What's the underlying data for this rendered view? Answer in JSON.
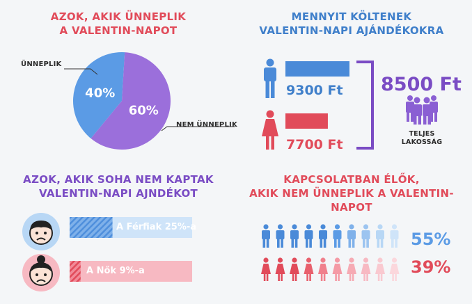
{
  "colors": {
    "red": "#e14b5a",
    "blue": "#3f7fca",
    "purple": "#7a4cc4",
    "light_blue": "#5b9be5",
    "pink": "#f06a7e",
    "pale_blue": "#b8d7f5",
    "pale_pink": "#f7b9c2"
  },
  "panels": {
    "celebrate": {
      "title_line1": "AZOK, AKIK ÜNNEPLIK",
      "title_line2": "A VALENTIN-NAPOT",
      "label_yes": "ÜNNEPLIK",
      "label_no": "NEM ÜNNEPLIK"
    },
    "spending": {
      "title_line1": "MENNYIT KÖLTENEK",
      "title_line2": "VALENTIN-NAPI AJÁNDÉKOKRA",
      "men_amount": "9300 Ft",
      "women_amount": "7700 Ft",
      "total_amount": "8500 Ft",
      "total_label_line1": "TELJES",
      "total_label_line2": "LAKOSSÁG",
      "icons": [
        "man-icon",
        "woman-icon",
        "group-icon"
      ]
    },
    "never_received": {
      "title_line1": "AZOK, AKIK SOHA NEM KAPTAK",
      "title_line2": "VALENTIN-NAPI AJNDÉKOT",
      "men_label": "A Férfiak 25%-a",
      "women_label": "A Nők 9%-a",
      "icons": [
        "sad-man-face-icon",
        "sad-woman-face-icon"
      ]
    },
    "relationship": {
      "title_line1": "KAPCSOLATBAN ÉLŐK,",
      "title_line2": "AKIK NEM ÜNNEPLIK A VALENTIN-NAPOT",
      "men_pct": "55%",
      "women_pct": "39%"
    }
  },
  "chart_data": [
    {
      "type": "pie",
      "title": "AZOK, AKIK ÜNNEPLIK A VALENTIN-NAPOT",
      "categories": [
        "ÜNNEPLIK",
        "NEM ÜNNEPLIK"
      ],
      "values": [
        40,
        60
      ],
      "value_labels": [
        "40%",
        "60%"
      ],
      "colors": [
        "#5b9be5",
        "#9b6fdb"
      ]
    },
    {
      "type": "bar",
      "title": "MENNYIT KÖLTENEK VALENTIN-NAPI AJÁNDÉKOKRA",
      "categories": [
        "men",
        "women"
      ],
      "values": [
        9300,
        7700
      ],
      "value_labels": [
        "9300 Ft",
        "7700 Ft"
      ],
      "total": 8500
    },
    {
      "type": "bar",
      "title": "AZOK, AKIK SOHA NEM KAPTAK VALENTIN-NAPI AJNDÉKOT",
      "categories": [
        "A Férfiak",
        "A Nők"
      ],
      "values": [
        25,
        9
      ],
      "value_labels": [
        "A Férfiak 25%-a",
        "A Nők 9%-a"
      ]
    },
    {
      "type": "bar",
      "title": "KAPCSOLATBAN ÉLŐK, AKIK NEM ÜNNEPLIK A VALENTIN-NAPOT",
      "categories": [
        "men",
        "women"
      ],
      "values": [
        55,
        39
      ],
      "value_labels": [
        "55%",
        "39%"
      ]
    }
  ]
}
